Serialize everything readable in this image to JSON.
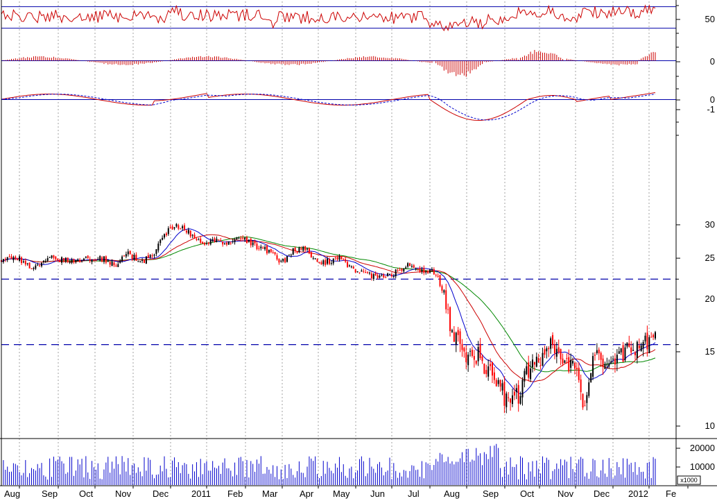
{
  "months": [
    "Aug",
    "Sep",
    "Oct",
    "Nov",
    "Dec",
    "2011",
    "Feb",
    "Mar",
    "Apr",
    "May",
    "Jun",
    "Jul",
    "Aug",
    "Sep",
    "Oct",
    "Nov",
    "Dec",
    "2012",
    "Fe"
  ],
  "volume_unit": "x1000",
  "panels": {
    "rsi": {
      "ticks": [
        "50"
      ],
      "upper_level": 60,
      "lower_level": 40
    },
    "histogram": {
      "ticks": [
        "0"
      ]
    },
    "macd": {
      "ticks": [
        "0",
        "-1"
      ]
    },
    "price": {
      "ticks": [
        "30",
        "25",
        "20",
        "15",
        "10"
      ],
      "ylim": [
        10,
        31
      ],
      "scale": "log",
      "support_levels": [
        22.3,
        15.6
      ]
    },
    "volume": {
      "ticks": [
        "20000",
        "10000"
      ]
    }
  },
  "colors": {
    "grid": "#a0a0a0",
    "frame": "#000000",
    "level_line": "#0000aa",
    "rsi_line": "#cc0000",
    "hist_bar": "#cc0000",
    "macd_line": "#cc0000",
    "signal_line": "#0000cc",
    "up_candle": "#000000",
    "down_candle": "#ff0000",
    "ma_short": "#0000cc",
    "ma_mid": "#cc0000",
    "ma_long": "#008800",
    "volume_bar": "#0000cc"
  },
  "chart_data": {
    "type": "line",
    "x_label": "",
    "y_label": "",
    "series": [
      {
        "name": "",
        "approx_weekly_close": [
          [
            "Aug",
            24.5
          ],
          [
            "Sep",
            24.5
          ],
          [
            "Oct",
            24.7
          ],
          [
            "Nov",
            24.6
          ],
          [
            "Dec",
            26.5
          ],
          [
            "2011",
            28.0
          ],
          [
            "Feb",
            27.8
          ],
          [
            "Mar",
            25.5
          ],
          [
            "Apr",
            25.2
          ],
          [
            "May",
            24.2
          ],
          [
            "Jun",
            22.5
          ],
          [
            "Jul",
            23.2
          ],
          [
            "Aug",
            16.0
          ],
          [
            "Sep",
            12.5
          ],
          [
            "Oct",
            14.3
          ],
          [
            "Nov",
            12.2
          ],
          [
            "Dec",
            14.2
          ],
          [
            "2012",
            16.1
          ]
        ]
      }
    ]
  }
}
